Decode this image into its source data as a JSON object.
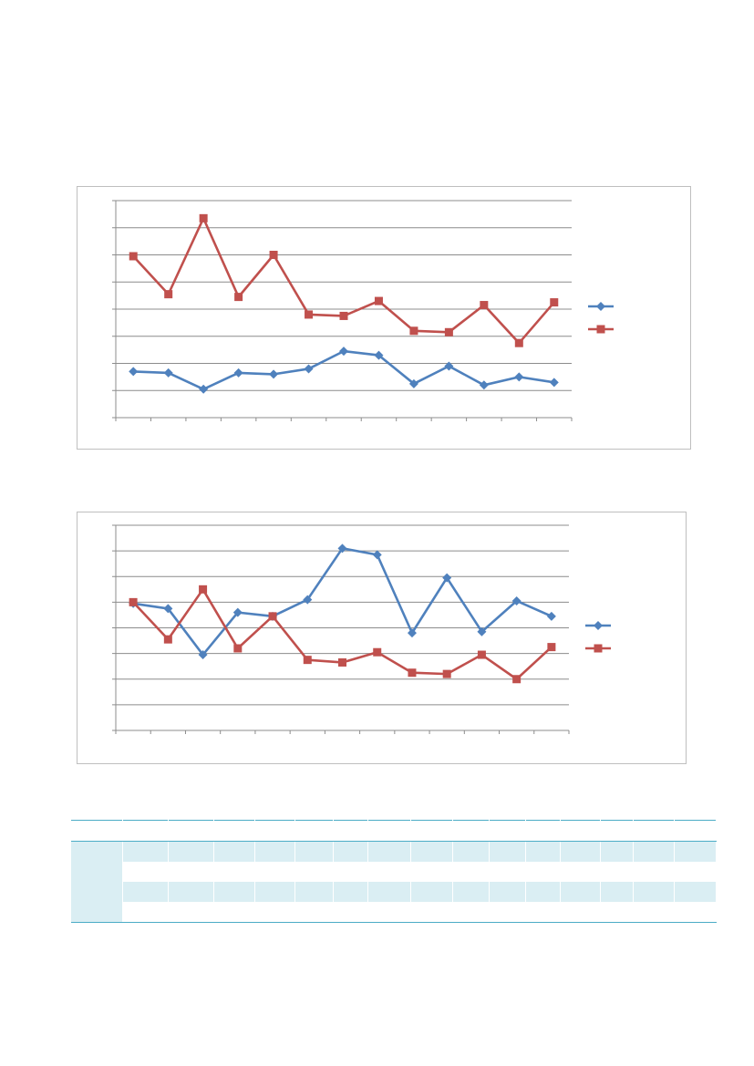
{
  "colors": {
    "series_blue": "#4f81bd",
    "series_red": "#c0504d",
    "gridline": "#8c8c8c",
    "table_band": "#daeef3",
    "table_rule": "#4bacc6"
  },
  "chart_data": [
    {
      "type": "line",
      "categories": [
        "",
        "",
        "",
        "",
        "",
        "",
        "",
        "",
        "",
        "",
        "",
        "",
        ""
      ],
      "ylim": [
        0,
        8
      ],
      "grid": true,
      "legend": "right",
      "series": [
        {
          "color": "#4f81bd",
          "marker": "diamond",
          "values": [
            1.7,
            1.65,
            1.05,
            1.65,
            1.6,
            1.8,
            2.45,
            2.3,
            1.25,
            1.9,
            1.2,
            1.5,
            1.3
          ]
        },
        {
          "color": "#c0504d",
          "marker": "square",
          "values": [
            5.95,
            4.55,
            7.35,
            4.45,
            6.0,
            3.8,
            3.75,
            4.3,
            3.2,
            3.15,
            4.15,
            2.75,
            4.25
          ]
        }
      ]
    },
    {
      "type": "line",
      "categories": [
        "",
        "",
        "",
        "",
        "",
        "",
        "",
        "",
        "",
        "",
        "",
        "",
        ""
      ],
      "ylim": [
        0,
        8
      ],
      "grid": true,
      "legend": "right",
      "series": [
        {
          "color": "#4f81bd",
          "marker": "diamond",
          "values": [
            4.95,
            4.75,
            2.95,
            4.6,
            4.45,
            5.1,
            7.1,
            6.85,
            3.8,
            5.95,
            3.85,
            5.05,
            4.45
          ]
        },
        {
          "color": "#c0504d",
          "marker": "square",
          "values": [
            5.0,
            3.55,
            5.5,
            3.2,
            4.45,
            2.75,
            2.65,
            3.05,
            2.25,
            2.2,
            2.95,
            2.0,
            3.25
          ]
        }
      ]
    }
  ],
  "table": {
    "columns": [
      "",
      "",
      "",
      "",
      "",
      "",
      "",
      "",
      "",
      "",
      "",
      "",
      "",
      "",
      "",
      ""
    ],
    "rows": [
      [
        "",
        "",
        "",
        "",
        "",
        "",
        "",
        "",
        "",
        "",
        "",
        "",
        "",
        "",
        "",
        ""
      ],
      [
        "",
        "",
        "",
        "",
        "",
        "",
        "",
        "",
        "",
        "",
        "",
        "",
        "",
        "",
        "",
        ""
      ],
      [
        "",
        "",
        "",
        "",
        "",
        "",
        "",
        "",
        "",
        "",
        "",
        "",
        "",
        "",
        "",
        ""
      ],
      [
        "",
        "",
        "",
        "",
        "",
        "",
        "",
        "",
        "",
        "",
        "",
        "",
        "",
        "",
        "",
        ""
      ]
    ]
  }
}
